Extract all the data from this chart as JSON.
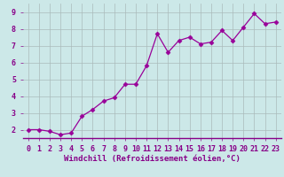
{
  "x": [
    0,
    1,
    2,
    3,
    4,
    5,
    6,
    7,
    8,
    9,
    10,
    11,
    12,
    13,
    14,
    15,
    16,
    17,
    18,
    19,
    20,
    21,
    22,
    23
  ],
  "y": [
    2.0,
    2.0,
    1.9,
    1.7,
    1.8,
    2.8,
    3.2,
    3.7,
    3.9,
    4.7,
    4.7,
    5.8,
    7.7,
    6.6,
    7.3,
    7.5,
    7.1,
    7.2,
    7.9,
    7.3,
    8.1,
    8.9,
    8.3,
    8.4
  ],
  "line_color": "#990099",
  "marker": "D",
  "marker_size": 2.5,
  "bg_color": "#cce8e8",
  "grid_color": "#aabbbb",
  "xlabel": "Windchill (Refroidissement éolien,°C)",
  "tick_label_color": "#880088",
  "ylabel_ticks": [
    2,
    3,
    4,
    5,
    6,
    7,
    8,
    9
  ],
  "xlim": [
    -0.5,
    23.5
  ],
  "ylim": [
    1.5,
    9.5
  ],
  "axis_label_fontsize": 6.5,
  "tick_fontsize": 6.0,
  "spine_color": "#888888"
}
